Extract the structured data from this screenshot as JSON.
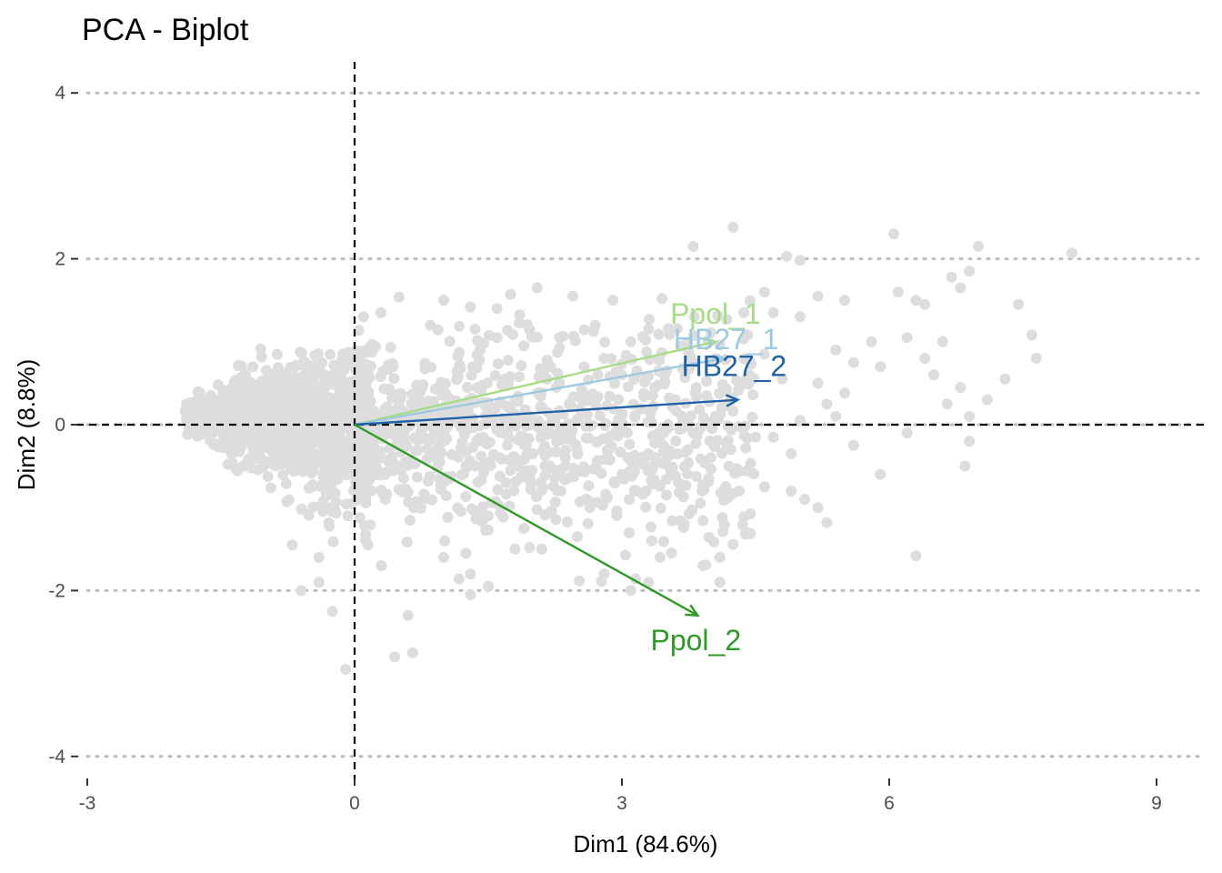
{
  "chart_data": {
    "type": "scatter",
    "title": "PCA - Biplot",
    "xlabel": "Dim1 (84.6%)",
    "ylabel": "Dim2 (8.8%)",
    "xlim": [
      -3,
      9.5
    ],
    "ylim": [
      -4.4,
      4.4
    ],
    "x_ticks": [
      -3,
      0,
      3,
      6,
      9
    ],
    "x_tick_labels": [
      "-3",
      "0",
      "3",
      "6",
      "9"
    ],
    "y_ticks": [
      -4,
      -2,
      0,
      2,
      4
    ],
    "y_tick_labels": [
      "-4",
      "-2",
      "0",
      "2",
      "4"
    ],
    "grid": "horizontal dotted",
    "point_color": "#dddddd",
    "variables": [
      {
        "name": "Ppol_1",
        "x": 4.05,
        "y": 1.0,
        "color": "#a6dc86"
      },
      {
        "name": "HB27_1",
        "x": 4.15,
        "y": 0.8,
        "color": "#9ecae1"
      },
      {
        "name": "HB27_2",
        "x": 4.3,
        "y": 0.3,
        "color": "#1f62a6"
      },
      {
        "name": "Ppol_2",
        "x": 3.85,
        "y": -2.3,
        "color": "#2e9a26"
      }
    ],
    "outlier_points": [
      [
        4.25,
        2.38
      ],
      [
        6.05,
        2.3
      ],
      [
        7.0,
        2.15
      ],
      [
        8.05,
        2.07
      ],
      [
        3.8,
        2.15
      ],
      [
        4.85,
        2.03
      ],
      [
        6.9,
        1.85
      ],
      [
        5.0,
        1.98
      ],
      [
        3.45,
        1.52
      ],
      [
        4.6,
        1.6
      ],
      [
        5.2,
        1.55
      ],
      [
        6.1,
        1.6
      ],
      [
        6.3,
        1.5
      ],
      [
        6.8,
        1.65
      ],
      [
        6.7,
        1.78
      ],
      [
        5.5,
        1.5
      ],
      [
        6.4,
        1.45
      ],
      [
        7.45,
        1.45
      ],
      [
        7.6,
        1.08
      ],
      [
        7.65,
        0.8
      ],
      [
        7.3,
        0.55
      ],
      [
        6.2,
        1.05
      ],
      [
        6.6,
        1.0
      ],
      [
        5.8,
        1.0
      ],
      [
        5.9,
        0.7
      ],
      [
        5.6,
        0.75
      ],
      [
        6.4,
        0.8
      ],
      [
        5.4,
        0.9
      ],
      [
        5.5,
        0.38
      ],
      [
        6.5,
        0.6
      ],
      [
        6.65,
        0.25
      ],
      [
        6.8,
        0.45
      ],
      [
        7.1,
        0.3
      ],
      [
        6.9,
        0.1
      ],
      [
        6.85,
        -0.5
      ],
      [
        6.9,
        -0.2
      ],
      [
        5.4,
        0.1
      ],
      [
        5.6,
        -0.25
      ],
      [
        5.9,
        -0.6
      ],
      [
        6.2,
        -0.1
      ],
      [
        6.3,
        -1.58
      ],
      [
        5.3,
        -1.18
      ],
      [
        4.4,
        -1.3
      ],
      [
        4.1,
        -1.6
      ],
      [
        4.1,
        -1.9
      ],
      [
        3.3,
        -1.9
      ],
      [
        3.1,
        -2.0
      ],
      [
        2.8,
        -1.8
      ],
      [
        1.3,
        -2.05
      ],
      [
        0.6,
        -2.3
      ],
      [
        0.45,
        -2.8
      ],
      [
        0.65,
        -2.75
      ],
      [
        -0.1,
        -2.95
      ],
      [
        -0.25,
        -2.25
      ],
      [
        -0.6,
        -2.0
      ],
      [
        1.0,
        1.5
      ],
      [
        0.1,
        1.3
      ],
      [
        0.85,
        1.2
      ],
      [
        1.3,
        1.42
      ],
      [
        1.6,
        1.4
      ],
      [
        1.75,
        1.57
      ],
      [
        2.05,
        1.65
      ],
      [
        2.45,
        1.55
      ],
      [
        2.9,
        1.5
      ],
      [
        3.3,
        1.15
      ],
      [
        5.2,
        0.5
      ],
      [
        5.3,
        0.25
      ],
      [
        5.0,
        0.05
      ],
      [
        4.5,
        -0.15
      ],
      [
        4.9,
        -0.35
      ],
      [
        5.05,
        -0.9
      ],
      [
        4.9,
        -0.8
      ],
      [
        5.2,
        -1.0
      ],
      [
        3.5,
        -0.85
      ],
      [
        3.9,
        -0.8
      ],
      [
        3.7,
        -1.2
      ],
      [
        2.5,
        -1.35
      ],
      [
        2.1,
        -1.5
      ],
      [
        1.8,
        -1.5
      ],
      [
        1.0,
        -1.6
      ],
      [
        1.3,
        -1.8
      ],
      [
        1.5,
        -1.95
      ],
      [
        1.25,
        -1.55
      ],
      [
        0.3,
        -1.7
      ],
      [
        0.15,
        -1.45
      ],
      [
        -0.4,
        -1.6
      ],
      [
        -0.7,
        -1.45
      ],
      [
        -0.4,
        -1.9
      ],
      [
        2.8,
        0.8
      ],
      [
        3.0,
        0.6
      ],
      [
        3.1,
        1.0
      ],
      [
        2.7,
        1.2
      ],
      [
        2.3,
        1.05
      ],
      [
        2.2,
        0.7
      ],
      [
        1.9,
        0.95
      ],
      [
        1.6,
        1.05
      ],
      [
        3.6,
        0.3
      ],
      [
        3.8,
        -0.1
      ],
      [
        3.3,
        -0.35
      ],
      [
        3.0,
        -0.6
      ],
      [
        2.6,
        -0.9
      ],
      [
        2.3,
        -0.6
      ],
      [
        2.0,
        -0.35
      ],
      [
        1.7,
        -0.7
      ],
      [
        1.5,
        -1.1
      ],
      [
        1.9,
        -1.25
      ],
      [
        4.6,
        0.85
      ],
      [
        4.8,
        0.55
      ],
      [
        4.4,
        0.55
      ],
      [
        4.7,
        1.35
      ],
      [
        5.0,
        1.3
      ],
      [
        4.2,
        -0.5
      ],
      [
        4.6,
        -0.75
      ],
      [
        4.0,
        -0.4
      ],
      [
        4.7,
        -0.15
      ]
    ]
  }
}
